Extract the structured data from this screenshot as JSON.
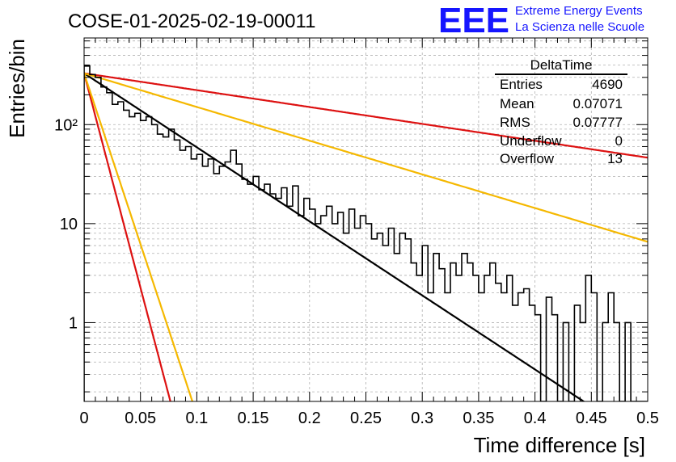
{
  "chart_data": {
    "type": "histogram",
    "title": "COSE-01-2025-02-19-00011",
    "xlabel": "Time difference [s]",
    "ylabel": "Entries/bin",
    "xlim": [
      0,
      0.5
    ],
    "ylim": [
      0.16,
      750
    ],
    "yscale": "log",
    "grid": true,
    "x_tick_labels": [
      "0",
      "0.05",
      "0.1",
      "0.15",
      "0.2",
      "0.25",
      "0.3",
      "0.35",
      "0.4",
      "0.45",
      "0.5"
    ],
    "y_tick_labels": [
      "1",
      "10",
      "10²"
    ],
    "bin_width": 0.005,
    "bin_values": [
      390,
      320,
      300,
      240,
      210,
      160,
      170,
      140,
      120,
      130,
      110,
      120,
      100,
      80,
      75,
      90,
      70,
      55,
      60,
      45,
      50,
      38,
      45,
      32,
      38,
      42,
      55,
      40,
      28,
      25,
      30,
      22,
      25,
      20,
      18,
      23,
      15,
      24,
      12,
      18,
      14,
      10,
      12,
      15,
      10,
      13,
      8,
      14,
      9,
      12,
      10,
      7,
      8,
      6,
      9,
      5,
      8,
      7,
      4,
      3,
      6,
      2,
      5,
      3.5,
      2,
      4,
      3,
      5,
      4,
      3,
      2,
      3,
      4,
      2.5,
      2,
      3,
      1.5,
      2,
      2.2,
      1.5,
      1.2,
      0.1,
      1.8,
      1.2,
      0.1,
      1,
      0.1,
      1.5,
      1,
      3,
      2,
      0.1,
      1,
      2,
      1,
      0.1,
      1,
      0.1,
      0.1,
      0.1
    ],
    "fit_lines": [
      {
        "color": "#000000",
        "y0": 330,
        "tau": 0.05807
      },
      {
        "color": "#dd1111",
        "y0": 330,
        "tau": 0.2548
      },
      {
        "color": "#f5b800",
        "y0": 330,
        "tau": 0.1276
      },
      {
        "color": "#dd1111",
        "y0": 330,
        "tau": 0.01003
      },
      {
        "color": "#f5b800",
        "y0": 330,
        "tau": 0.01259
      }
    ],
    "colors": {
      "histogram": "#000000",
      "red": "#dd1111",
      "yellow": "#f5b800",
      "grid": "#b0b0b0"
    }
  },
  "stats_box": {
    "title": "DeltaTime",
    "rows": [
      {
        "label": "Entries",
        "value": "4690"
      },
      {
        "label": "Mean",
        "value": "0.07071"
      },
      {
        "label": "RMS",
        "value": "0.07777"
      },
      {
        "label": "Underflow",
        "value": "0"
      },
      {
        "label": "Overflow",
        "value": "13"
      }
    ]
  },
  "logo": {
    "mark": "EEE",
    "line1": "Extreme Energy Events",
    "line2": "La Scienza nelle Scuole",
    "color": "#1515ff"
  }
}
